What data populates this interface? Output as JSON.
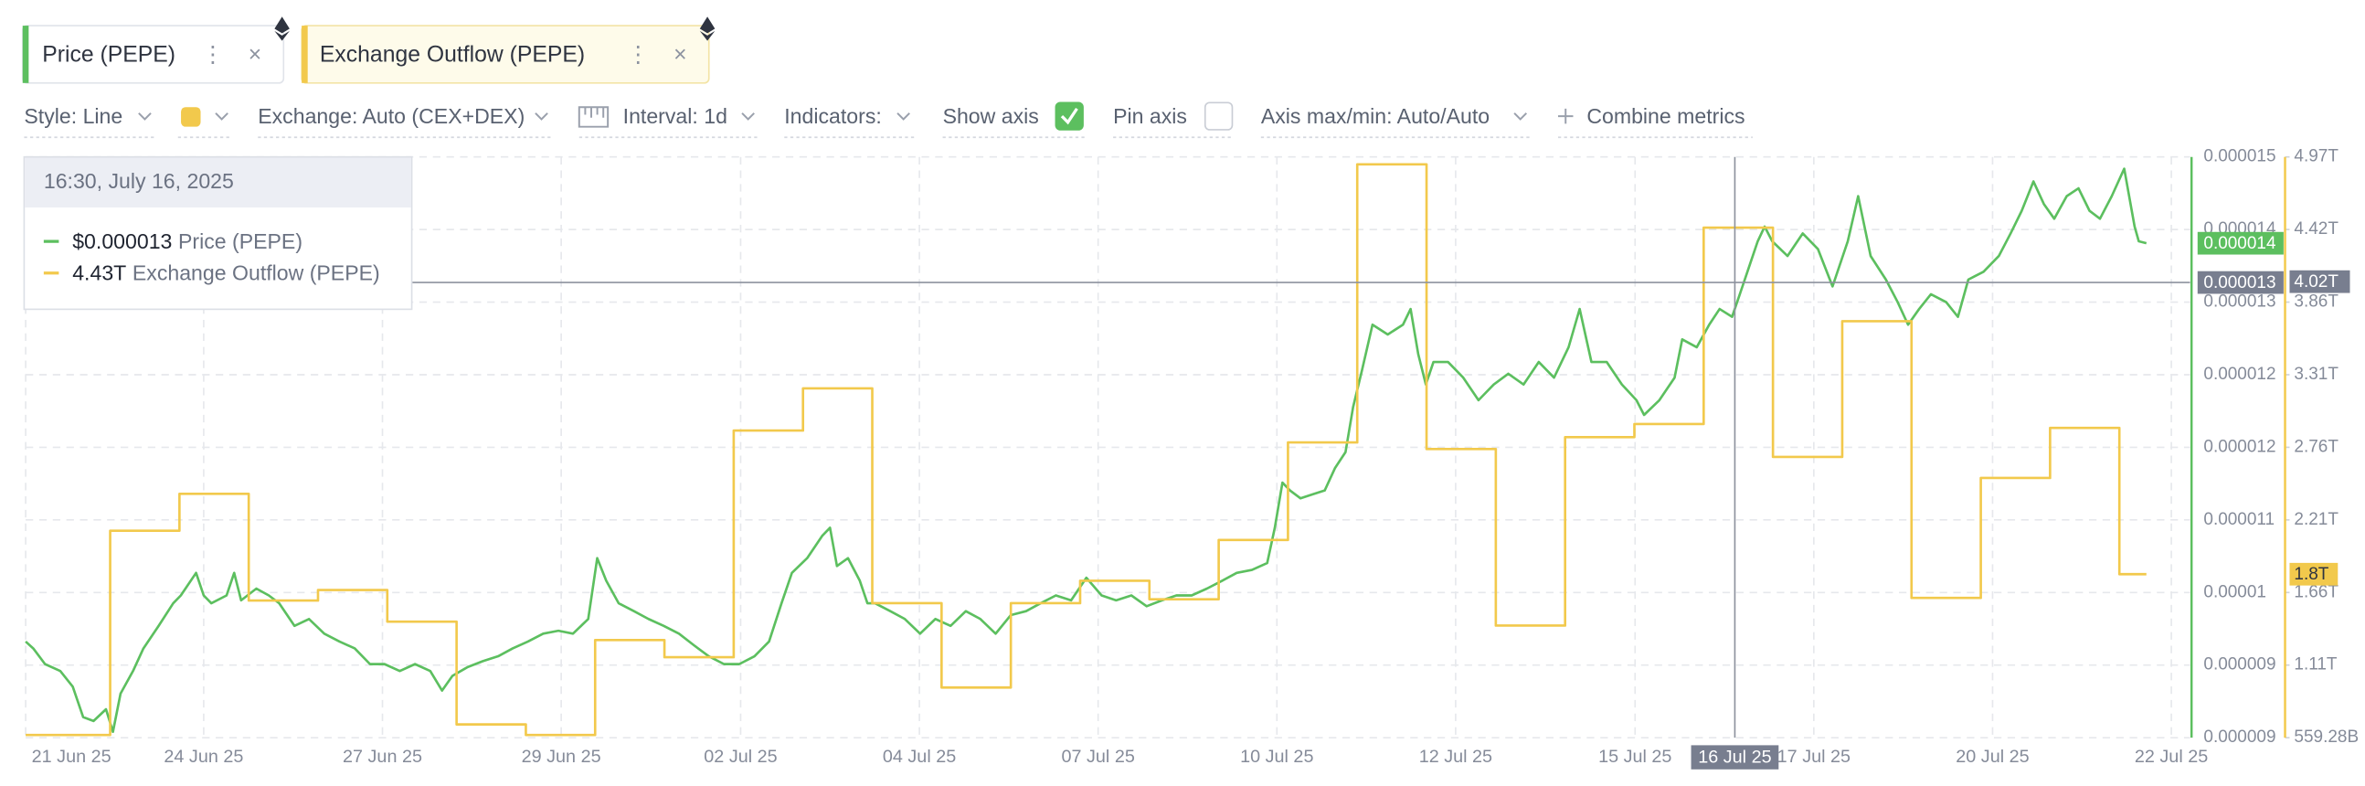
{
  "toolbar": {
    "style": "Style: Line",
    "exchange": "Exchange: Auto (CEX+DEX)",
    "interval": "Interval: 1d",
    "indicators": "Indicators:",
    "show_axis": "Show axis",
    "show_axis_checked": true,
    "pin_axis": "Pin axis",
    "pin_axis_checked": false,
    "axis_range": "Axis max/min: Auto/Auto",
    "combine": "Combine metrics"
  },
  "chart_data": {
    "type": "line",
    "grid": true,
    "xlim": [
      1.02,
      32.26
    ],
    "xticks": [
      {
        "value": 1.02,
        "label": "21 Jun 25"
      },
      {
        "value": 3.59,
        "label": "24 Jun 25"
      },
      {
        "value": 6.17,
        "label": "27 Jun 25"
      },
      {
        "value": 8.75,
        "label": "29 Jun 25"
      },
      {
        "value": 11.34,
        "label": "02 Jul 25"
      },
      {
        "value": 13.92,
        "label": "04 Jul 25"
      },
      {
        "value": 16.5,
        "label": "07 Jul 25"
      },
      {
        "value": 19.08,
        "label": "10 Jul 25"
      },
      {
        "value": 21.66,
        "label": "12 Jul 25"
      },
      {
        "value": 24.25,
        "label": "15 Jul 25"
      },
      {
        "value": 26.83,
        "label": "17 Jul 25"
      },
      {
        "value": 29.41,
        "label": "20 Jul 25"
      },
      {
        "value": 31.99,
        "label": "22 Jul 25"
      }
    ],
    "ylim": [
      8.74e-06,
      1.466e-05
    ],
    "yticks": [
      {
        "value": 8.74e-06,
        "label": "0.000009"
      },
      {
        "value": 9.48e-06,
        "label": "0.000009"
      },
      {
        "value": 1.022e-05,
        "label": "0.00001"
      },
      {
        "value": 1.096e-05,
        "label": "0.000011"
      },
      {
        "value": 1.17e-05,
        "label": "0.000012"
      },
      {
        "value": 1.244e-05,
        "label": "0.000012"
      },
      {
        "value": 1.318e-05,
        "label": "0.000013"
      },
      {
        "value": 1.392e-05,
        "label": "0.000014"
      },
      {
        "value": 1.466e-05,
        "label": "0.000015"
      }
    ],
    "y2lim": [
      559280000000,
      4966480000000
    ],
    "y2ticks": [
      {
        "value": 559280000000,
        "label": "559.28B"
      },
      {
        "value": 1110180000000,
        "label": "1.11T"
      },
      {
        "value": 1661080000000,
        "label": "1.66T"
      },
      {
        "value": 2211980000000,
        "label": "2.21T"
      },
      {
        "value": 2762880000000,
        "label": "2.76T"
      },
      {
        "value": 3313780000000,
        "label": "3.31T"
      },
      {
        "value": 3864680000000,
        "label": "3.86T"
      },
      {
        "value": 4415580000000,
        "label": "4.42T"
      },
      {
        "value": 4966480000000,
        "label": "4.97T"
      }
    ],
    "series": [
      {
        "name": "Price (PEPE)",
        "color": "#5cbf5f",
        "last_label": "0.000014",
        "x": [
          1.02,
          1.13,
          1.3,
          1.52,
          1.7,
          1.85,
          2.0,
          2.18,
          2.28,
          2.39,
          2.57,
          2.72,
          2.94,
          3.15,
          3.26,
          3.48,
          3.59,
          3.7,
          3.92,
          4.03,
          4.13,
          4.35,
          4.53,
          4.68,
          4.9,
          5.11,
          5.33,
          5.55,
          5.77,
          5.99,
          6.2,
          6.42,
          6.64,
          6.86,
          7.03,
          7.18,
          7.4,
          7.62,
          7.84,
          8.05,
          8.27,
          8.49,
          8.71,
          8.92,
          9.14,
          9.27,
          9.4,
          9.58,
          9.8,
          10.01,
          10.23,
          10.45,
          10.67,
          10.88,
          11.1,
          11.32,
          11.54,
          11.75,
          11.93,
          12.08,
          12.3,
          12.52,
          12.63,
          12.73,
          12.89,
          13.06,
          13.17,
          13.28,
          13.5,
          13.71,
          13.93,
          14.15,
          14.37,
          14.59,
          14.8,
          15.02,
          15.24,
          15.46,
          15.67,
          15.89,
          16.11,
          16.33,
          16.55,
          16.76,
          16.98,
          17.2,
          17.42,
          17.63,
          17.85,
          18.07,
          18.29,
          18.5,
          18.72,
          18.94,
          19.05,
          19.16,
          19.27,
          19.42,
          19.59,
          19.77,
          19.92,
          20.07,
          20.18,
          20.31,
          20.46,
          20.68,
          20.9,
          21.01,
          21.12,
          21.23,
          21.34,
          21.55,
          21.77,
          21.99,
          22.21,
          22.42,
          22.64,
          22.86,
          23.08,
          23.29,
          23.45,
          23.62,
          23.84,
          24.06,
          24.27,
          24.38,
          24.6,
          24.82,
          24.93,
          25.14,
          25.32,
          25.47,
          25.65,
          25.8,
          25.91,
          26.02,
          26.12,
          26.23,
          26.45,
          26.67,
          26.89,
          27.1,
          27.32,
          27.47,
          27.65,
          27.87,
          28.04,
          28.19,
          28.35,
          28.52,
          28.74,
          28.91,
          29.06,
          29.28,
          29.5,
          29.67,
          29.83,
          30.0,
          30.15,
          30.3,
          30.48,
          30.65,
          30.81,
          30.96,
          31.13,
          31.31,
          31.46,
          31.52,
          31.63
        ],
        "values": [
          9.72e-06,
          9.65e-06,
          9.49e-06,
          9.42e-06,
          9.26e-06,
          8.95e-06,
          8.91e-06,
          9.03e-06,
          8.8e-06,
          9.19e-06,
          9.42e-06,
          9.65e-06,
          9.88e-06,
          1.011e-05,
          1.019e-05,
          1.042e-05,
          1.019e-05,
          1.011e-05,
          1.019e-05,
          1.042e-05,
          1.014e-05,
          1.026e-05,
          1.019e-05,
          1.011e-05,
          9.88e-06,
          9.95e-06,
          9.8e-06,
          9.72e-06,
          9.65e-06,
          9.49e-06,
          9.49e-06,
          9.42e-06,
          9.49e-06,
          9.42e-06,
          9.22e-06,
          9.37e-06,
          9.46e-06,
          9.52e-06,
          9.57e-06,
          9.65e-06,
          9.72e-06,
          9.8e-06,
          9.83e-06,
          9.8e-06,
          9.95e-06,
          1.057e-05,
          1.034e-05,
          1.011e-05,
          1.003e-05,
          9.95e-06,
          9.88e-06,
          9.8e-06,
          9.68e-06,
          9.57e-06,
          9.49e-06,
          9.49e-06,
          9.57e-06,
          9.72e-06,
          1.011e-05,
          1.042e-05,
          1.057e-05,
          1.08e-05,
          1.088e-05,
          1.049e-05,
          1.057e-05,
          1.034e-05,
          1.011e-05,
          1.011e-05,
          1.003e-05,
          9.95e-06,
          9.8e-06,
          9.95e-06,
          9.88e-06,
          1.003e-05,
          9.95e-06,
          9.8e-06,
          9.99e-06,
          1.003e-05,
          1.011e-05,
          1.019e-05,
          1.014e-05,
          1.037e-05,
          1.019e-05,
          1.014e-05,
          1.019e-05,
          1.008e-05,
          1.014e-05,
          1.019e-05,
          1.019e-05,
          1.026e-05,
          1.034e-05,
          1.042e-05,
          1.045e-05,
          1.052e-05,
          1.088e-05,
          1.134e-05,
          1.126e-05,
          1.118e-05,
          1.122e-05,
          1.126e-05,
          1.149e-05,
          1.165e-05,
          1.211e-05,
          1.249e-05,
          1.295e-05,
          1.285e-05,
          1.295e-05,
          1.311e-05,
          1.265e-05,
          1.234e-05,
          1.257e-05,
          1.257e-05,
          1.241e-05,
          1.218e-05,
          1.234e-05,
          1.245e-05,
          1.234e-05,
          1.257e-05,
          1.241e-05,
          1.272e-05,
          1.311e-05,
          1.257e-05,
          1.257e-05,
          1.234e-05,
          1.218e-05,
          1.203e-05,
          1.218e-05,
          1.241e-05,
          1.28e-05,
          1.272e-05,
          1.295e-05,
          1.311e-05,
          1.303e-05,
          1.334e-05,
          1.357e-05,
          1.38e-05,
          1.395e-05,
          1.38e-05,
          1.365e-05,
          1.388e-05,
          1.372e-05,
          1.334e-05,
          1.38e-05,
          1.426e-05,
          1.365e-05,
          1.341e-05,
          1.318e-05,
          1.295e-05,
          1.311e-05,
          1.326e-05,
          1.318e-05,
          1.303e-05,
          1.341e-05,
          1.349e-05,
          1.365e-05,
          1.388e-05,
          1.411e-05,
          1.441e-05,
          1.418e-05,
          1.403e-05,
          1.426e-05,
          1.434e-05,
          1.411e-05,
          1.403e-05,
          1.426e-05,
          1.454e-05,
          1.395e-05,
          1.38e-05,
          1.378e-05
        ]
      },
      {
        "name": "Exchange Outflow (PEPE)",
        "color": "#f2c94c",
        "axis": "y2",
        "step": true,
        "last_label": "1.8T",
        "x": [
          1.02,
          2.24,
          3.24,
          4.24,
          5.24,
          6.24,
          7.24,
          8.24,
          9.24,
          10.24,
          11.24,
          12.24,
          13.24,
          14.24,
          15.24,
          16.24,
          17.24,
          18.24,
          19.24,
          20.24,
          21.24,
          22.24,
          23.24,
          24.24,
          25.24,
          26.24,
          27.24,
          28.24,
          29.24,
          30.24,
          31.24
        ],
        "values": [
          580000000000,
          2130000000000,
          2410000000000,
          1600000000000,
          1680000000000,
          1440000000000,
          660000000000,
          580000000000,
          1300000000000,
          1170000000000,
          2890000000000,
          3210000000000,
          1580000000000,
          940000000000,
          1580000000000,
          1750000000000,
          1610000000000,
          2060000000000,
          2800000000000,
          4910000000000,
          2750000000000,
          1410000000000,
          2840000000000,
          2940000000000,
          4430000000000,
          2690000000000,
          3720000000000,
          1620000000000,
          2530000000000,
          2910000000000,
          1800000000000
        ]
      }
    ],
    "crosshair": {
      "x": 25.69,
      "x_label": "16 Jul 25",
      "y": 1.338e-05,
      "y_label": "0.000013",
      "y2": 4020000000000,
      "y2_label": "4.02T"
    },
    "tooltip": {
      "title": "16:30, July 16, 2025",
      "value_labels": [
        "$0.000013",
        "4.43T"
      ]
    }
  }
}
